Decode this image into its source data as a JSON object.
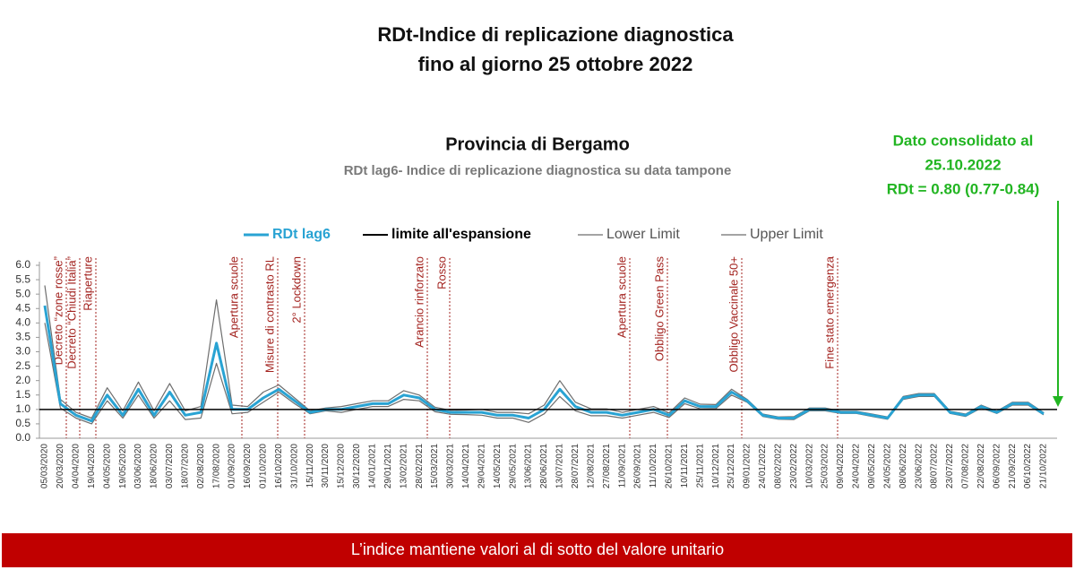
{
  "header": {
    "title": [
      "RDt-Indice di replicazione diagnostica",
      "fino al giorno 25 ottobre 2022"
    ]
  },
  "callout": {
    "lines": [
      "Dato consolidato al",
      "25.10.2022",
      "RDt = 0.80 (0.77-0.84)"
    ]
  },
  "footer": {
    "text": "L’indice mantiene valori al di sotto del valore unitario"
  },
  "chart_data": {
    "type": "line",
    "title": "Provincia di Bergamo",
    "subtitle": "RDt lag6- Indice di replicazione diagnostica su data tampone",
    "categories": [
      "05/03/2020",
      "20/03/2020",
      "04/04/2020",
      "19/04/2020",
      "04/05/2020",
      "19/05/2020",
      "03/06/2020",
      "18/06/2020",
      "03/07/2020",
      "18/07/2020",
      "02/08/2020",
      "17/08/2020",
      "01/09/2020",
      "16/09/2020",
      "01/10/2020",
      "16/10/2020",
      "31/10/2020",
      "15/11/2020",
      "30/11/2020",
      "15/12/2020",
      "30/12/2020",
      "14/01/2021",
      "29/01/2021",
      "13/02/2021",
      "28/02/2021",
      "15/03/2021",
      "30/03/2021",
      "14/04/2021",
      "29/04/2021",
      "14/05/2021",
      "29/05/2021",
      "13/06/2021",
      "28/06/2021",
      "13/07/2021",
      "28/07/2021",
      "12/08/2021",
      "27/08/2021",
      "11/09/2021",
      "26/09/2021",
      "11/10/2021",
      "26/10/2021",
      "10/11/2021",
      "25/11/2021",
      "10/12/2021",
      "25/12/2021",
      "09/01/2022",
      "24/01/2022",
      "08/02/2022",
      "23/02/2022",
      "10/03/2022",
      "25/03/2022",
      "09/04/2022",
      "24/04/2022",
      "09/05/2022",
      "24/05/2022",
      "08/06/2022",
      "23/06/2022",
      "08/07/2022",
      "23/07/2022",
      "07/08/2022",
      "22/08/2022",
      "06/09/2022",
      "21/09/2022",
      "06/10/2022",
      "21/10/2022"
    ],
    "series": [
      {
        "name": "RDt lag6",
        "color": "#29a3d3",
        "values": [
          4.6,
          1.2,
          0.8,
          0.6,
          1.5,
          0.8,
          1.7,
          0.8,
          1.6,
          0.8,
          0.9,
          3.3,
          1.0,
          1.0,
          1.4,
          1.7,
          1.3,
          0.9,
          1.0,
          1.0,
          1.1,
          1.2,
          1.2,
          1.5,
          1.4,
          1.0,
          0.9,
          0.9,
          0.9,
          0.8,
          0.8,
          0.7,
          1.0,
          1.7,
          1.1,
          0.9,
          0.9,
          0.8,
          0.9,
          1.0,
          0.8,
          1.3,
          1.1,
          1.1,
          1.6,
          1.3,
          0.8,
          0.7,
          0.7,
          1.0,
          1.0,
          0.9,
          0.9,
          0.8,
          0.7,
          1.4,
          1.5,
          1.5,
          0.9,
          0.8,
          1.1,
          0.9,
          1.2,
          1.2,
          0.85
        ]
      },
      {
        "name": "Lower Limit",
        "color": "#6e6e6e",
        "values": [
          4.0,
          1.05,
          0.7,
          0.5,
          1.3,
          0.7,
          1.5,
          0.7,
          1.3,
          0.65,
          0.7,
          2.6,
          0.85,
          0.9,
          1.25,
          1.6,
          1.2,
          0.85,
          0.95,
          0.9,
          1.0,
          1.1,
          1.1,
          1.35,
          1.3,
          0.92,
          0.83,
          0.82,
          0.8,
          0.7,
          0.7,
          0.55,
          0.85,
          1.45,
          0.95,
          0.78,
          0.78,
          0.7,
          0.8,
          0.9,
          0.72,
          1.2,
          1.02,
          1.03,
          1.5,
          1.25,
          0.76,
          0.66,
          0.65,
          0.95,
          0.95,
          0.86,
          0.86,
          0.76,
          0.66,
          1.35,
          1.45,
          1.45,
          0.86,
          0.76,
          1.05,
          0.86,
          1.15,
          1.15,
          0.81
        ]
      },
      {
        "name": "Upper Limit",
        "color": "#6e6e6e",
        "values": [
          5.3,
          1.35,
          0.9,
          0.7,
          1.75,
          0.95,
          1.95,
          0.95,
          1.9,
          0.95,
          1.1,
          4.8,
          1.15,
          1.1,
          1.6,
          1.85,
          1.4,
          0.95,
          1.05,
          1.1,
          1.2,
          1.3,
          1.3,
          1.65,
          1.5,
          1.08,
          0.97,
          0.98,
          1.0,
          0.9,
          0.9,
          0.85,
          1.15,
          2.0,
          1.25,
          1.02,
          1.02,
          0.9,
          1.0,
          1.1,
          0.88,
          1.4,
          1.18,
          1.17,
          1.7,
          1.35,
          0.84,
          0.74,
          0.75,
          1.05,
          1.05,
          0.94,
          0.94,
          0.84,
          0.74,
          1.45,
          1.55,
          1.55,
          0.94,
          0.84,
          1.15,
          0.94,
          1.25,
          1.25,
          0.89
        ]
      }
    ],
    "reference_line": {
      "name": "limite all'espansione",
      "value": 1,
      "color": "#000000"
    },
    "ylim": [
      0,
      6
    ],
    "yticks": [
      {
        "value": 0,
        "label": "0.0"
      },
      {
        "value": 0.5,
        "label": "0.5"
      },
      {
        "value": 1,
        "label": "1.0"
      },
      {
        "value": 1.5,
        "label": "1.5"
      },
      {
        "value": 2,
        "label": "2.0"
      },
      {
        "value": 2.5,
        "label": "2.5"
      },
      {
        "value": 3,
        "label": "3.0"
      },
      {
        "value": 3.5,
        "label": "3.5"
      },
      {
        "value": 4,
        "label": "4.0"
      },
      {
        "value": 4.5,
        "label": "4.5"
      },
      {
        "value": 5,
        "label": "5.0"
      },
      {
        "value": 5.5,
        "label": "5.5"
      },
      {
        "value": 6,
        "label": "6.0"
      }
    ],
    "annotations": [
      "Decreto “zone rosse”",
      "Decreto “Chiudi Italia”",
      "Riaperture",
      "Apertura scuole",
      "Misure di contrasto RL",
      "2° Lockdown",
      "Arancio rinforzato",
      "Rosso",
      "Apertura scuole",
      "Obbligo Green Pass",
      "Obbligo Vaccinale 50+",
      "Fine stato emergenza"
    ]
  }
}
